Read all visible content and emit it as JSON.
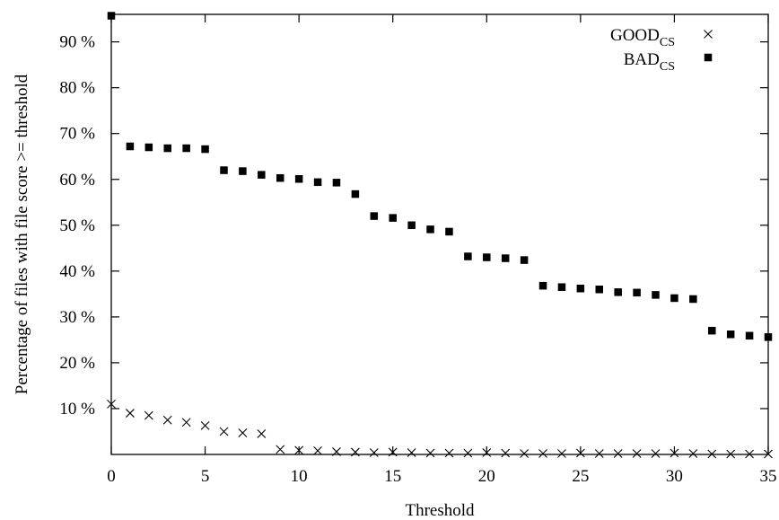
{
  "chart_data": {
    "type": "scatter",
    "xlabel": "Threshold",
    "ylabel": "Percentage of files with file score >= threshold",
    "xlim": [
      0,
      35
    ],
    "ylim": [
      0,
      96
    ],
    "x_ticks": [
      "0",
      "5",
      "10",
      "15",
      "20",
      "25",
      "30",
      "35"
    ],
    "y_ticks": [
      "10 %",
      "20 %",
      "30 %",
      "40 %",
      "50 %",
      "60 %",
      "70 %",
      "80 %",
      "90 %"
    ],
    "y_tick_values": [
      10,
      20,
      30,
      40,
      50,
      60,
      70,
      80,
      90
    ],
    "x_tick_values": [
      0,
      5,
      10,
      15,
      20,
      25,
      30,
      35
    ],
    "grid": false,
    "legend_position": "top-right",
    "legend": {
      "good_main": "GOOD",
      "good_sub": "CS",
      "bad_main": "BAD",
      "bad_sub": "CS"
    },
    "series": [
      {
        "name": "GOOD_CS",
        "marker": "x",
        "x": [
          0,
          1,
          2,
          3,
          4,
          5,
          6,
          7,
          8,
          9,
          10,
          11,
          12,
          13,
          14,
          15,
          16,
          17,
          18,
          19,
          20,
          21,
          22,
          23,
          24,
          25,
          26,
          27,
          28,
          29,
          30,
          31,
          32,
          33,
          34,
          35
        ],
        "values": [
          11,
          9,
          8.5,
          7.5,
          7,
          6.3,
          5,
          4.7,
          4.5,
          1.1,
          0.9,
          0.8,
          0.6,
          0.5,
          0.4,
          0.5,
          0.4,
          0.3,
          0.3,
          0.3,
          0.4,
          0.3,
          0.2,
          0.2,
          0.2,
          0.3,
          0.2,
          0.2,
          0.2,
          0.2,
          0.3,
          0.2,
          0.1,
          0.1,
          0.1,
          0.1
        ]
      },
      {
        "name": "BAD_CS",
        "marker": "square",
        "x": [
          0,
          1,
          2,
          3,
          4,
          5,
          6,
          7,
          8,
          9,
          10,
          11,
          12,
          13,
          14,
          15,
          16,
          17,
          18,
          19,
          20,
          21,
          22,
          23,
          24,
          25,
          26,
          27,
          28,
          29,
          30,
          31,
          32,
          33,
          34,
          35
        ],
        "values": [
          95.7,
          67.2,
          67,
          66.8,
          66.8,
          66.6,
          62,
          61.8,
          61,
          60.3,
          60.1,
          59.4,
          59.3,
          56.8,
          52,
          51.6,
          50,
          49.1,
          48.6,
          43.2,
          43,
          42.8,
          42.4,
          36.8,
          36.5,
          36.2,
          36,
          35.4,
          35.3,
          34.8,
          34.1,
          33.9,
          27,
          26.2,
          25.9,
          25.6
        ]
      }
    ]
  }
}
